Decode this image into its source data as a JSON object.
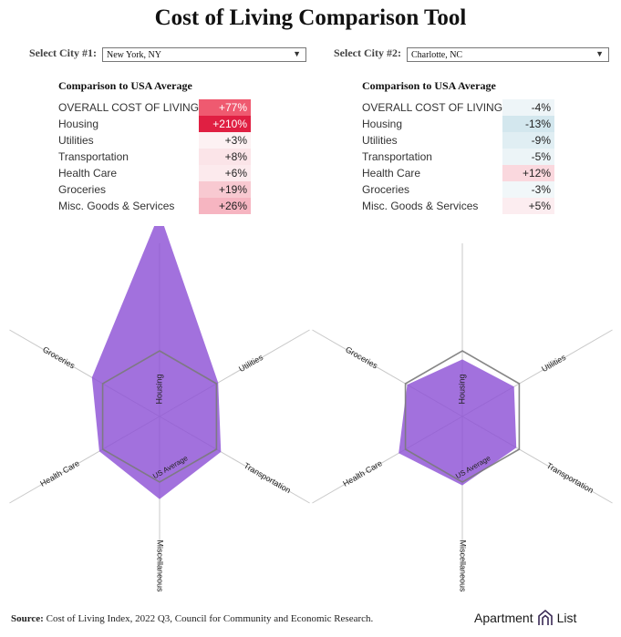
{
  "title": "Cost of Living Comparison Tool",
  "city1": {
    "select_label": "Select City #1:",
    "selected": "New York, NY",
    "table_header": "Comparison to USA Average",
    "rows": [
      {
        "label": "OVERALL COST OF LIVING",
        "value": "+77%",
        "color": "#ef5a70",
        "text_color": "#ffffff"
      },
      {
        "label": "Housing",
        "value": "+210%",
        "color": "#e01f42",
        "text_color": "#ffffff"
      },
      {
        "label": "Utilities",
        "value": "+3%",
        "color": "#fdf1f3",
        "text_color": "#222222"
      },
      {
        "label": "Transportation",
        "value": "+8%",
        "color": "#fbe4e8",
        "text_color": "#222222"
      },
      {
        "label": "Health Care",
        "value": "+6%",
        "color": "#fceaed",
        "text_color": "#222222"
      },
      {
        "label": "Groceries",
        "value": "+19%",
        "color": "#f8c9d1",
        "text_color": "#222222"
      },
      {
        "label": "Misc. Goods & Services",
        "value": "+26%",
        "color": "#f6b5c1",
        "text_color": "#222222"
      }
    ],
    "radar": {
      "housing": 3.1,
      "utilities": 1.03,
      "transportation": 1.08,
      "miscellaneous": 1.26,
      "health_care": 1.06,
      "groceries": 1.19
    }
  },
  "city2": {
    "select_label": "Select City #2:",
    "selected": "Charlotte, NC",
    "table_header": "Comparison to USA Average",
    "rows": [
      {
        "label": "OVERALL COST OF LIVING",
        "value": "-4%",
        "color": "#eef5f8",
        "text_color": "#222222"
      },
      {
        "label": "Housing",
        "value": "-13%",
        "color": "#d3e7ee",
        "text_color": "#222222"
      },
      {
        "label": "Utilities",
        "value": "-9%",
        "color": "#e0eef3",
        "text_color": "#222222"
      },
      {
        "label": "Transportation",
        "value": "-5%",
        "color": "#ecf4f7",
        "text_color": "#222222"
      },
      {
        "label": "Health Care",
        "value": "+12%",
        "color": "#fad8de",
        "text_color": "#222222"
      },
      {
        "label": "Groceries",
        "value": "-3%",
        "color": "#f1f7f9",
        "text_color": "#222222"
      },
      {
        "label": "Misc. Goods & Services",
        "value": "+5%",
        "color": "#fcedf0",
        "text_color": "#222222"
      }
    ],
    "radar": {
      "housing": 0.87,
      "utilities": 0.91,
      "transportation": 0.95,
      "miscellaneous": 1.05,
      "health_care": 1.12,
      "groceries": 0.97
    }
  },
  "radar_axes": {
    "housing": "Housing",
    "utilities": "Utilities",
    "transportation": "Transportation",
    "miscellaneous": "Miscellaneous",
    "health_care": "Health Care",
    "groceries": "Groceries",
    "baseline": "US Average"
  },
  "colors": {
    "fill": "#8e52d6",
    "outline": "#5a3b86",
    "baseline": "#7a7a7a",
    "axis": "#c8c8c8"
  },
  "source": {
    "label": "Source:",
    "text": " Cost of Living Index, 2022 Q3, Council for Community and Economic Research."
  },
  "brand": {
    "name": "Apartment",
    "suffix": "List",
    "logo_icon": "apartment-list-logo-icon"
  }
}
